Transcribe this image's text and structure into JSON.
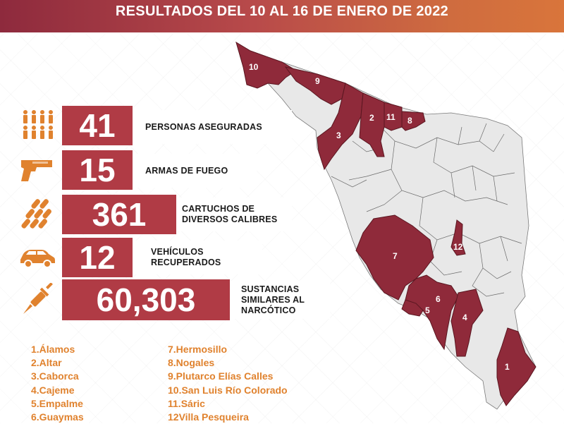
{
  "header": {
    "title": "RESULTADOS DEL 10 AL 16 DE ENERO DE 2022"
  },
  "colors": {
    "accent": "#b03b45",
    "legend": "#e0822e",
    "municipio_selected": "#8f2a3a"
  },
  "stats": [
    {
      "value": "41",
      "icon": "people-icon",
      "label_lines": [
        "PERSONAS ASEGURADAS"
      ]
    },
    {
      "value": "15",
      "icon": "pistol-icon",
      "label_lines": [
        "ARMAS DE FUEGO"
      ]
    },
    {
      "value": "361",
      "icon": "bullets-icon",
      "label_lines": [
        "CARTUCHOS DE",
        "DIVERSOS CALIBRES"
      ]
    },
    {
      "value": "12",
      "icon": "car-icon",
      "label_lines": [
        "VEHÍCULOS",
        "RECUPERADOS"
      ]
    },
    {
      "value": "60,303",
      "icon": "syringe-icon",
      "label_lines": [
        "SUSTANCIAS",
        "SIMILARES AL",
        "NARCÓTICO"
      ]
    }
  ],
  "legend": {
    "left": [
      "1.Álamos",
      "2.Altar",
      "3.Caborca",
      "4.Cajeme",
      "5.Empalme",
      "6.Guaymas"
    ],
    "right": [
      "7.Hermosillo",
      "8.Nogales",
      "9.Plutarco Elías Calles",
      "10.San Luis Río Colorado",
      "11.Sáric",
      "12Villa Pesqueira"
    ]
  },
  "map": {
    "numbers": [
      "1",
      "2",
      "3",
      "4",
      "5",
      "6",
      "7",
      "8",
      "9",
      "10",
      "11",
      "12"
    ]
  }
}
